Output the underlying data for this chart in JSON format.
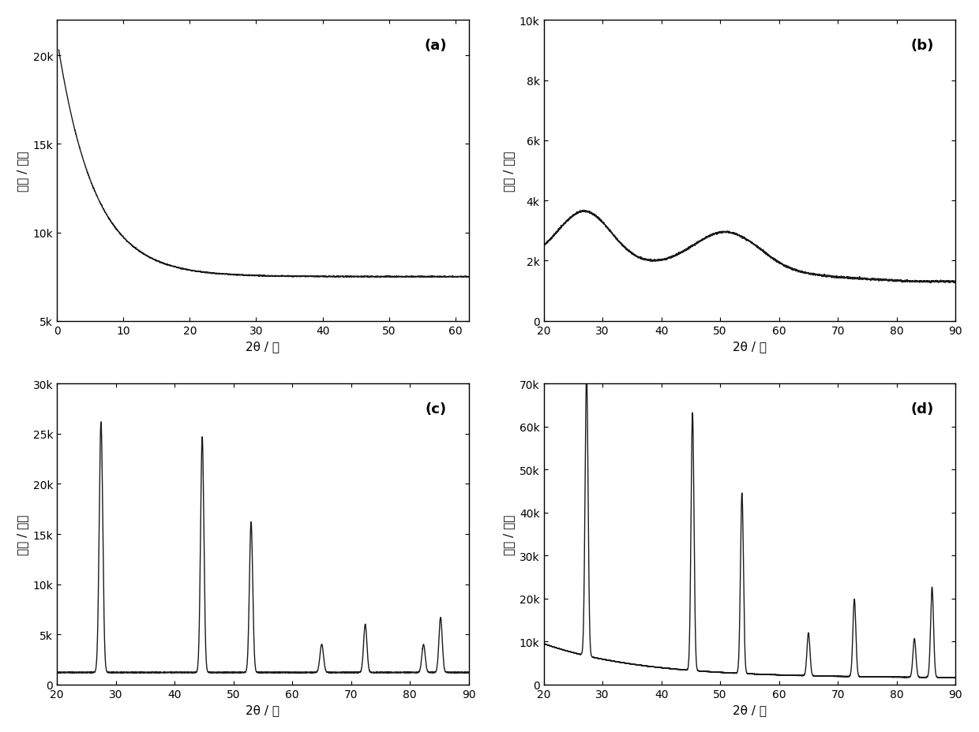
{
  "panel_a": {
    "label": "(a)",
    "xlim": [
      0,
      62
    ],
    "ylim": [
      5000,
      22000
    ],
    "yticks": [
      5000,
      10000,
      15000,
      20000
    ],
    "yticklabels": [
      "5k",
      "10k",
      "15k",
      "20k"
    ],
    "xticks": [
      0,
      10,
      20,
      30,
      40,
      50,
      60
    ],
    "xlabel": "2θ / 度",
    "ylabel": "强度 / 计数"
  },
  "panel_b": {
    "label": "(b)",
    "xlim": [
      20,
      90
    ],
    "ylim": [
      0,
      10000
    ],
    "yticks": [
      0,
      2000,
      4000,
      6000,
      8000,
      10000
    ],
    "yticklabels": [
      "0",
      "2k",
      "4k",
      "6k",
      "8k",
      "10k"
    ],
    "xticks": [
      20,
      30,
      40,
      50,
      60,
      70,
      80,
      90
    ],
    "xlabel": "2θ / 度",
    "ylabel": "强度 / 计数"
  },
  "panel_c": {
    "label": "(c)",
    "xlim": [
      20,
      90
    ],
    "ylim": [
      0,
      30000
    ],
    "yticks": [
      0,
      5000,
      10000,
      15000,
      20000,
      25000,
      30000
    ],
    "yticklabels": [
      "0",
      "5k",
      "10k",
      "15k",
      "20k",
      "25k",
      "30k"
    ],
    "xticks": [
      20,
      30,
      40,
      50,
      60,
      70,
      80,
      90
    ],
    "xlabel": "2θ / 度",
    "ylabel": "强度 / 计数"
  },
  "panel_d": {
    "label": "(d)",
    "xlim": [
      20,
      90
    ],
    "ylim": [
      0,
      70000
    ],
    "yticks": [
      0,
      10000,
      20000,
      30000,
      40000,
      50000,
      60000,
      70000
    ],
    "yticklabels": [
      "0",
      "10k",
      "20k",
      "30k",
      "40k",
      "50k",
      "60k",
      "70k"
    ],
    "xticks": [
      20,
      30,
      40,
      50,
      60,
      70,
      80,
      90
    ],
    "xlabel": "2θ / 度",
    "ylabel": "强度 / 计数"
  },
  "line_color": "#1a1a1a",
  "line_width": 1.0,
  "bg_color": "#ffffff",
  "tick_fontsize": 10,
  "label_fontsize": 11,
  "panel_label_fontsize": 13
}
